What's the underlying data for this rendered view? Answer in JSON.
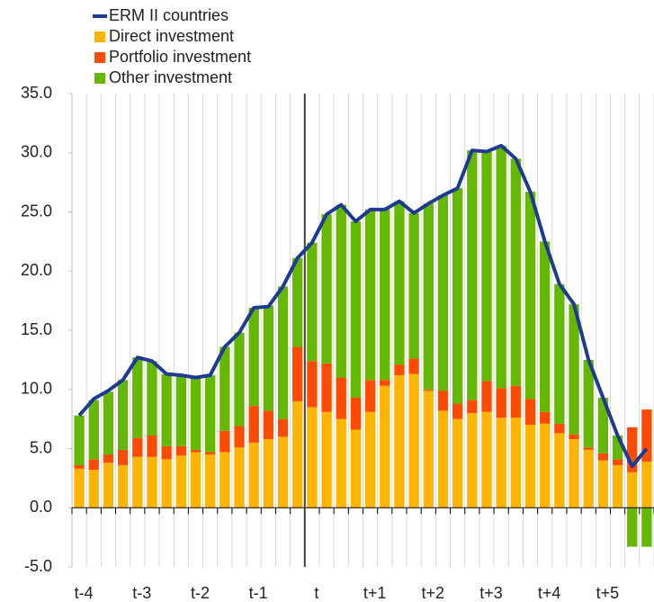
{
  "chart_data": {
    "type": "bar",
    "stacked": true,
    "categories": [
      "t-4",
      null,
      null,
      null,
      "t-3",
      null,
      null,
      null,
      "t-2",
      null,
      null,
      null,
      "t-1",
      null,
      null,
      null,
      "t",
      null,
      null,
      null,
      "t+1",
      null,
      null,
      null,
      "t+2",
      null,
      null,
      null,
      "t+3",
      null,
      null,
      null,
      "t+4",
      null,
      null,
      null,
      "t+5",
      null,
      null,
      null
    ],
    "series": [
      {
        "name": "ERM II countries",
        "type": "line",
        "color": "#1f3a93",
        "values": [
          7.8,
          9.2,
          9.9,
          10.8,
          12.7,
          12.4,
          11.3,
          11.2,
          11.0,
          11.2,
          13.6,
          14.8,
          16.9,
          17.0,
          18.7,
          21.1,
          22.4,
          24.8,
          25.6,
          24.2,
          25.2,
          25.2,
          25.9,
          24.9,
          25.7,
          26.4,
          27.0,
          30.2,
          30.1,
          30.6,
          29.5,
          26.7,
          22.5,
          18.9,
          17.2,
          12.5,
          9.3,
          6.1,
          3.5,
          5.0
        ]
      },
      {
        "name": "Direct investment",
        "type": "bar",
        "color": "#ffb400",
        "values": [
          3.3,
          3.2,
          3.8,
          3.6,
          4.3,
          4.3,
          4.1,
          4.4,
          4.7,
          4.5,
          4.7,
          5.1,
          5.5,
          5.8,
          6.0,
          9.0,
          8.5,
          8.1,
          7.5,
          6.6,
          8.1,
          10.3,
          11.2,
          11.3,
          9.9,
          8.2,
          7.5,
          8.0,
          8.1,
          7.6,
          7.6,
          7.0,
          7.1,
          6.3,
          5.8,
          4.9,
          4.0,
          3.6,
          3.0,
          3.9
        ]
      },
      {
        "name": "Portfolio investment",
        "type": "bar",
        "color": "#ff4b00",
        "values": [
          0.3,
          0.9,
          0.7,
          1.3,
          1.6,
          1.8,
          1.1,
          0.8,
          0.2,
          0.2,
          1.8,
          1.8,
          3.1,
          2.4,
          1.5,
          4.6,
          3.9,
          4.1,
          3.5,
          2.7,
          2.7,
          0.5,
          0.9,
          1.3,
          0.1,
          1.7,
          1.3,
          1.1,
          2.6,
          2.5,
          2.7,
          2.2,
          1.0,
          0.8,
          0.4,
          0.2,
          0.6,
          0.5,
          3.8,
          4.4
        ]
      },
      {
        "name": "Other investment",
        "type": "bar",
        "color": "#65b800",
        "values": [
          4.2,
          5.0,
          5.3,
          5.9,
          6.8,
          6.3,
          6.1,
          6.0,
          6.1,
          6.5,
          7.1,
          7.9,
          8.3,
          8.9,
          11.2,
          7.5,
          10.0,
          12.6,
          14.6,
          14.9,
          14.4,
          14.4,
          13.8,
          12.3,
          15.7,
          16.5,
          18.2,
          21.1,
          19.4,
          20.5,
          19.2,
          17.5,
          14.4,
          11.8,
          11.0,
          7.4,
          4.7,
          2.0,
          -3.3,
          -3.3
        ]
      }
    ],
    "ylim": [
      -5,
      35
    ],
    "yticks": [
      {
        "value": -5,
        "label": "-5.0"
      },
      {
        "value": 0,
        "label": "0.0"
      },
      {
        "value": 5,
        "label": "5.0"
      },
      {
        "value": 10,
        "label": "10.0"
      },
      {
        "value": 15,
        "label": "15.0"
      },
      {
        "value": 20,
        "label": "20.0"
      },
      {
        "value": 25,
        "label": "25.0"
      },
      {
        "value": 30,
        "label": "30.0"
      },
      {
        "value": 35,
        "label": "35.0"
      }
    ],
    "legend": "top-left"
  }
}
